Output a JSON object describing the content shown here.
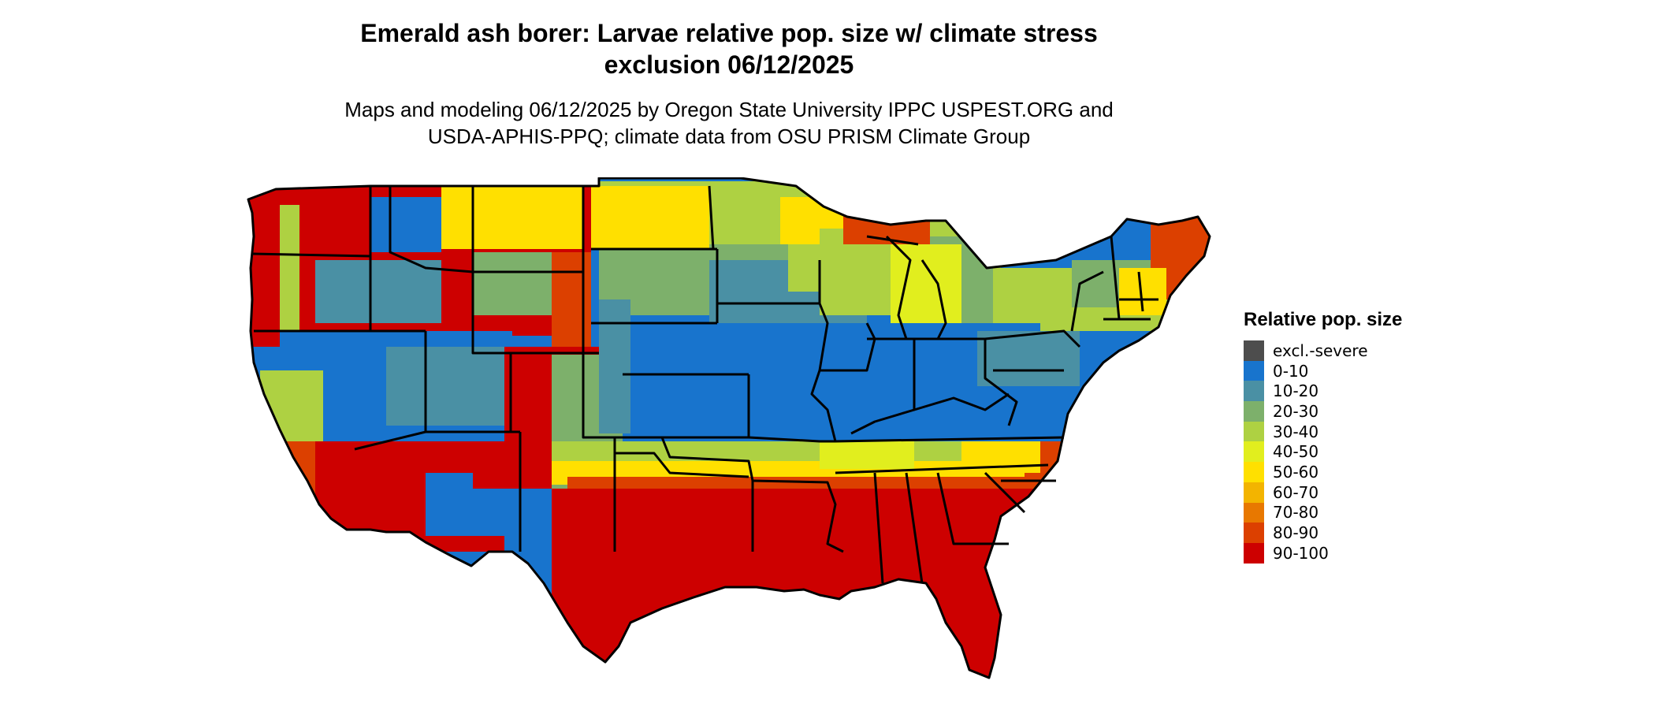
{
  "title": {
    "line1": "Emerald ash borer: Larvae relative pop. size w/ climate stress",
    "line2": "exclusion 06/12/2025"
  },
  "subtitle": {
    "line1": "Maps and modeling 06/12/2025 by Oregon State University IPPC USPEST.ORG and",
    "line2": "USDA-APHIS-PPQ; climate data from OSU PRISM Climate Group"
  },
  "legend": {
    "title": "Relative pop. size",
    "items": [
      {
        "label": "excl.-severe",
        "color": "#4d4d4d"
      },
      {
        "label": "0-10",
        "color": "#1874cd"
      },
      {
        "label": "10-20",
        "color": "#4a90a4"
      },
      {
        "label": "20-30",
        "color": "#7db06b"
      },
      {
        "label": "30-40",
        "color": "#aed142"
      },
      {
        "label": "40-50",
        "color": "#e1ee1e"
      },
      {
        "label": "50-60",
        "color": "#ffe000"
      },
      {
        "label": "60-70",
        "color": "#f3b400"
      },
      {
        "label": "70-80",
        "color": "#e87800"
      },
      {
        "label": "80-90",
        "color": "#dc4000"
      },
      {
        "label": "90-100",
        "color": "#cd0000"
      }
    ]
  }
}
